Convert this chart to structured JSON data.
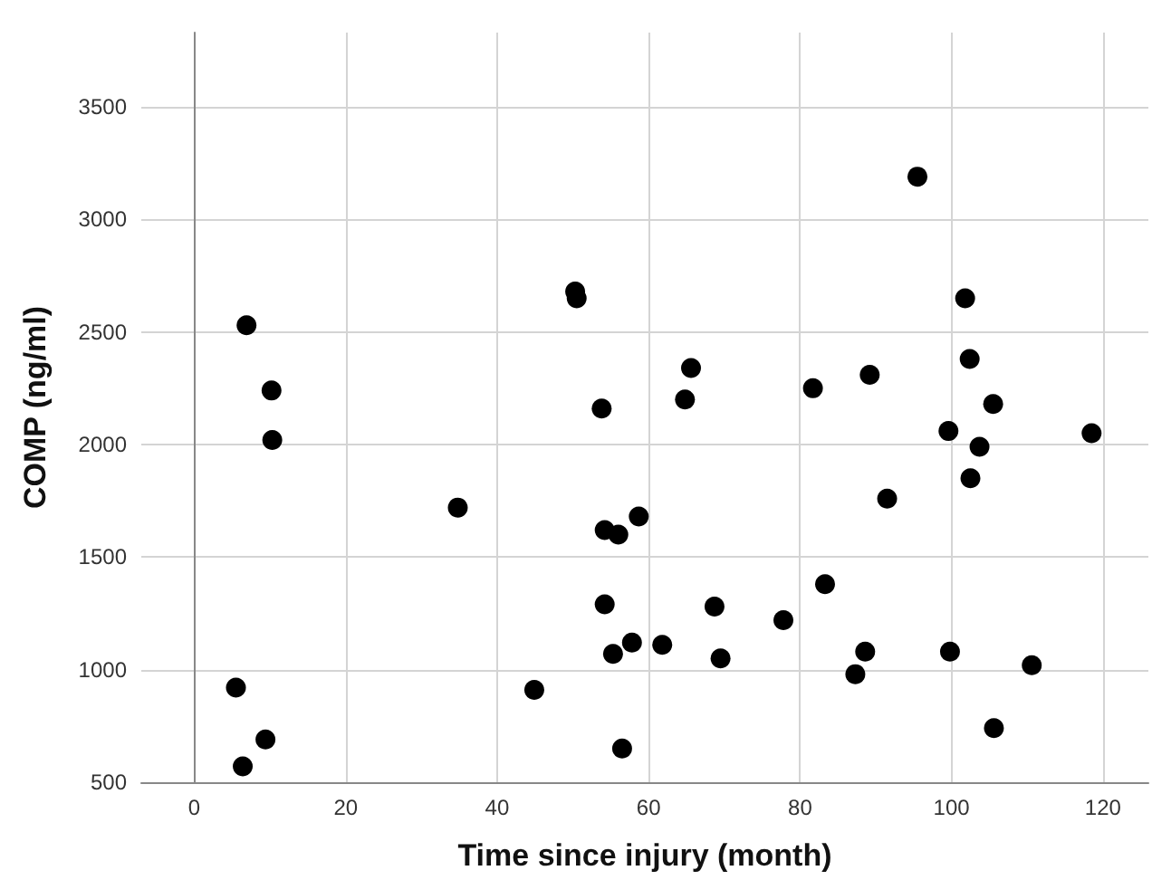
{
  "chart_data": {
    "type": "scatter",
    "xlabel": "Time since injury (month)",
    "ylabel": "COMP (ng/ml)",
    "x": [
      6.9,
      10.2,
      10.3,
      34.8,
      50.3,
      50.5,
      53.8,
      54.2,
      56.0,
      54.2,
      55.3,
      5.5,
      9.4,
      6.4,
      44.9,
      56.5,
      95.5,
      101.8,
      102.4,
      65.6,
      64.8,
      81.7,
      89.2,
      105.5,
      99.6,
      103.7,
      118.5,
      102.5,
      91.5,
      58.7,
      83.3,
      68.7,
      77.8,
      57.8,
      61.8,
      69.5,
      88.6,
      99.8,
      87.3,
      110.6,
      105.6
    ],
    "values": [
      2530,
      2240,
      2020,
      1720,
      2680,
      2650,
      2160,
      1620,
      1600,
      1290,
      1070,
      920,
      690,
      570,
      910,
      650,
      3190,
      2650,
      2380,
      2340,
      2200,
      2250,
      2310,
      2180,
      2060,
      1990,
      2050,
      1850,
      1760,
      1680,
      1380,
      1280,
      1220,
      1120,
      1110,
      1050,
      1080,
      1080,
      980,
      1020,
      740
    ],
    "color": "#000000",
    "marker": "circle",
    "grid": true,
    "xlim": [
      -7,
      126
    ],
    "xticks": [
      0,
      20,
      40,
      60,
      80,
      100,
      120
    ],
    "ylim": [
      500,
      3830
    ],
    "yticks": [
      500,
      1000,
      1500,
      2000,
      2500,
      3000,
      3500
    ]
  }
}
